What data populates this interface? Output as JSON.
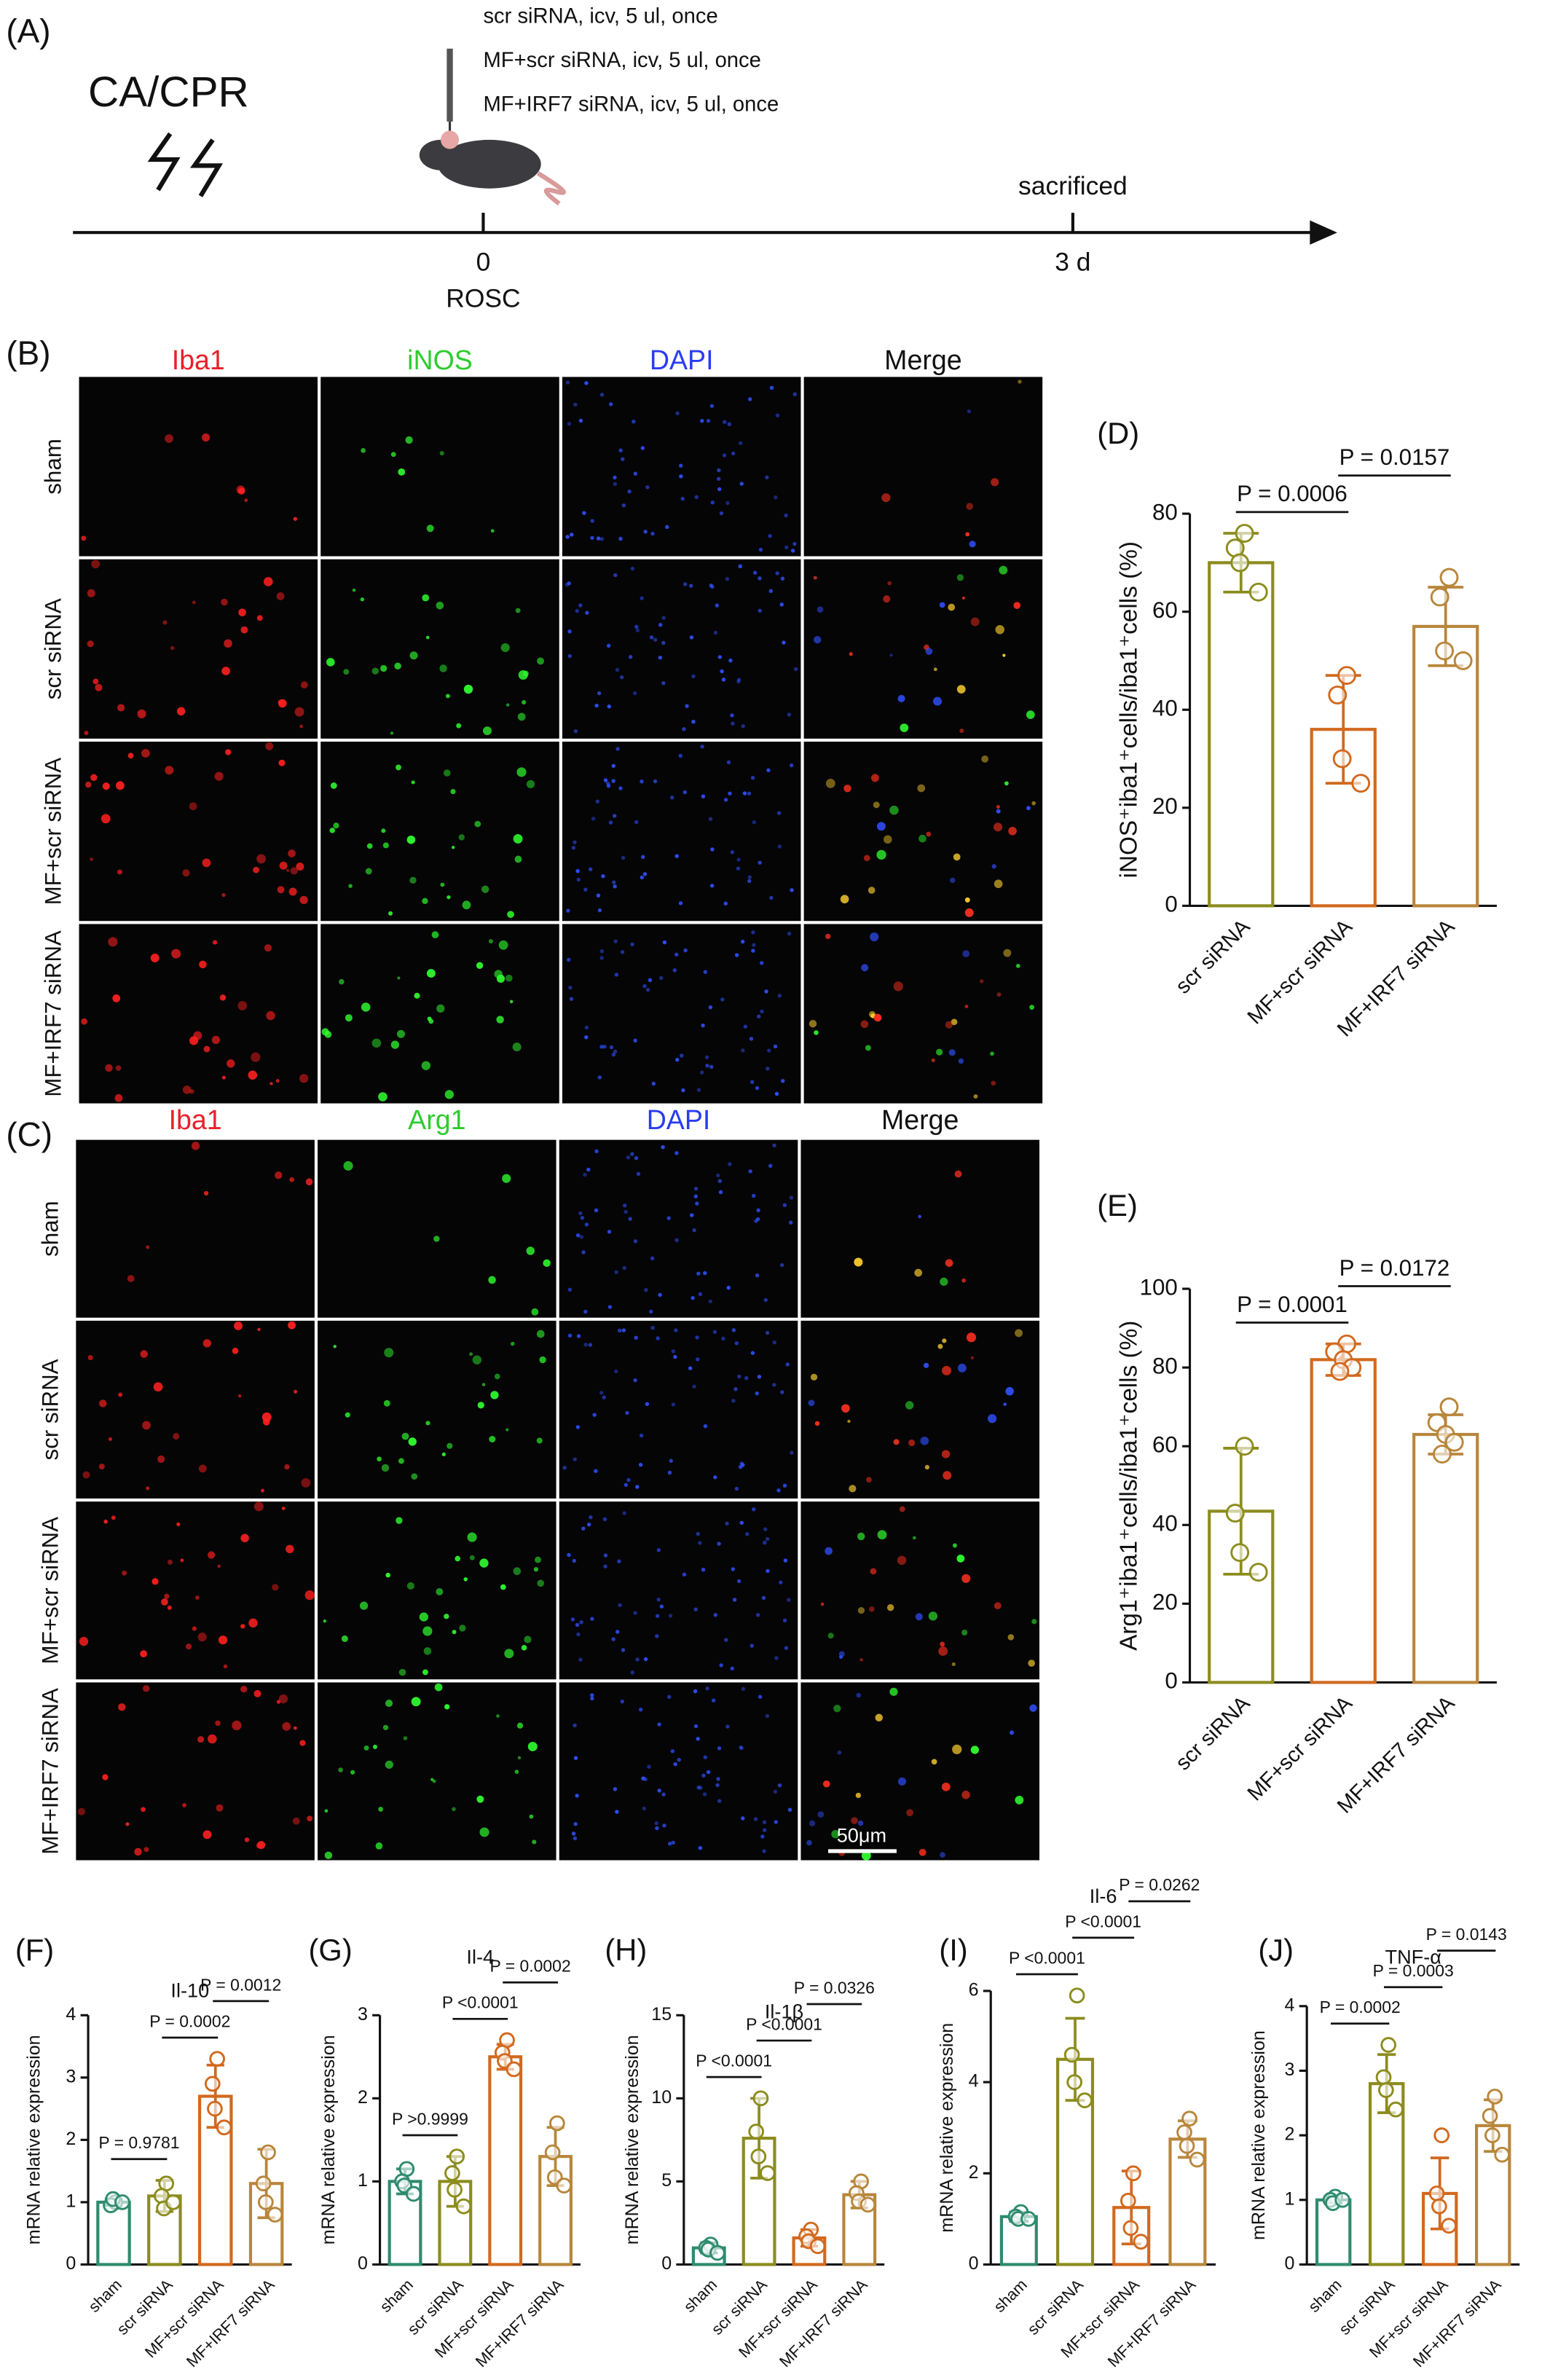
{
  "timeline": {
    "panel": "(A)",
    "event": "CA/CPR",
    "treatments": [
      "scr siRNA, icv, 5 ul, once",
      "MF+scr siRNA, icv, 5 ul, once",
      "MF+IRF7 siRNA, icv, 5 ul, once"
    ],
    "end_event": "sacrificed",
    "start_tick": "0",
    "start_label": "ROSC",
    "end_tick": "3 d"
  },
  "microscopy": [
    {
      "panel": "(B)",
      "columns": [
        "Iba1",
        "iNOS",
        "DAPI",
        "Merge"
      ],
      "column_colors": [
        "#e8202a",
        "#2ecc2e",
        "#2a3cf0",
        "#111111"
      ],
      "rows": [
        "sham",
        "scr siRNA",
        "MF+scr siRNA",
        "MF+IRF7 siRNA"
      ]
    },
    {
      "panel": "(C)",
      "columns": [
        "Iba1",
        "Arg1",
        "DAPI",
        "Merge"
      ],
      "column_colors": [
        "#e8202a",
        "#2ecc2e",
        "#2a3cf0",
        "#111111"
      ],
      "rows": [
        "sham",
        "scr siRNA",
        "MF+scr siRNA",
        "MF+IRF7 siRNA"
      ],
      "scale_bar": "50μm"
    }
  ],
  "chart_data": [
    {
      "type": "bar",
      "panel": "(D)",
      "y_label": "iNOS⁺iba1⁺cells/iba1⁺cells (%)",
      "categories": [
        "scr siRNA",
        "MF+scr siRNA",
        "MF+IRF7 siRNA"
      ],
      "colors": [
        "#8c8c1e",
        "#d2691e",
        "#b8863b"
      ],
      "values": [
        70,
        36,
        57
      ],
      "errors": [
        6,
        11,
        8
      ],
      "points": [
        [
          76,
          73,
          70,
          64
        ],
        [
          47,
          43,
          30,
          25
        ],
        [
          67,
          63,
          52,
          50
        ]
      ],
      "ylim": [
        0,
        80
      ],
      "yticks": [
        0,
        20,
        40,
        60,
        80
      ],
      "annotations": [
        {
          "text": "P = 0.0006",
          "from": 0,
          "to": 1
        },
        {
          "text": "P = 0.0157",
          "from": 1,
          "to": 2
        }
      ]
    },
    {
      "type": "bar",
      "panel": "(E)",
      "y_label": "Arg1⁺iba1⁺cells/iba1⁺cells (%)",
      "categories": [
        "scr siRNA",
        "MF+scr siRNA",
        "MF+IRF7 siRNA"
      ],
      "colors": [
        "#8c8c1e",
        "#d2691e",
        "#b8863b"
      ],
      "values": [
        43.5,
        82,
        63
      ],
      "errors": [
        16,
        4,
        5
      ],
      "points": [
        [
          60,
          43,
          33,
          28
        ],
        [
          86,
          84,
          82,
          80,
          79
        ],
        [
          70,
          66,
          63,
          61,
          58
        ]
      ],
      "ylim": [
        0,
        100
      ],
      "yticks": [
        0,
        20,
        40,
        60,
        80,
        100
      ],
      "annotations": [
        {
          "text": "P = 0.0001",
          "from": 0,
          "to": 1
        },
        {
          "text": "P = 0.0172",
          "from": 1,
          "to": 2
        }
      ]
    },
    {
      "type": "bar",
      "panel": "(F)",
      "title": "Il-10",
      "y_label": "mRNA relative expression",
      "categories": [
        "sham",
        "scr siRNA",
        "MF+scr siRNA",
        "MF+IRF7 siRNA"
      ],
      "colors": [
        "#2e8b6e",
        "#8c8c1e",
        "#d2691e",
        "#b8863b"
      ],
      "values": [
        1.0,
        1.1,
        2.7,
        1.3
      ],
      "errors": [
        0.05,
        0.25,
        0.5,
        0.55
      ],
      "points": [
        [
          1.0,
          0.95,
          1.05,
          1.0
        ],
        [
          1.3,
          1.1,
          0.9,
          1.0
        ],
        [
          3.3,
          2.9,
          2.5,
          2.2
        ],
        [
          1.8,
          1.3,
          1.0,
          0.8
        ]
      ],
      "ylim": [
        0,
        4
      ],
      "yticks": [
        0,
        1,
        2,
        3,
        4
      ],
      "annotations": [
        {
          "text": "P = 0.9781",
          "from": 0,
          "to": 1
        },
        {
          "text": "P = 0.0002",
          "from": 1,
          "to": 2
        },
        {
          "text": "P = 0.0012",
          "from": 2,
          "to": 3
        }
      ]
    },
    {
      "type": "bar",
      "panel": "(G)",
      "title": "Il-4",
      "y_label": "mRNA relative expression",
      "categories": [
        "sham",
        "scr siRNA",
        "MF+scr siRNA",
        "MF+IRF7 siRNA"
      ],
      "colors": [
        "#2e8b6e",
        "#8c8c1e",
        "#d2691e",
        "#b8863b"
      ],
      "values": [
        1.0,
        1.0,
        2.5,
        1.3
      ],
      "errors": [
        0.15,
        0.3,
        0.15,
        0.35
      ],
      "points": [
        [
          1.15,
          1.0,
          0.95,
          0.85
        ],
        [
          1.3,
          1.1,
          0.9,
          0.7
        ],
        [
          2.7,
          2.55,
          2.45,
          2.35
        ],
        [
          1.7,
          1.35,
          1.05,
          0.95
        ]
      ],
      "ylim": [
        0,
        3
      ],
      "yticks": [
        0,
        1,
        2,
        3
      ],
      "annotations": [
        {
          "text": "P >0.9999",
          "from": 0,
          "to": 1
        },
        {
          "text": "P <0.0001",
          "from": 1,
          "to": 2
        },
        {
          "text": "P = 0.0002",
          "from": 2,
          "to": 3
        }
      ]
    },
    {
      "type": "bar",
      "panel": "(H)",
      "title": "Il-1β",
      "y_label": "mRNA relative expression",
      "categories": [
        "sham",
        "scr siRNA",
        "MF+scr siRNA",
        "MF+IRF7 siRNA"
      ],
      "colors": [
        "#2e8b6e",
        "#8c8c1e",
        "#d2691e",
        "#b8863b"
      ],
      "values": [
        1.0,
        7.6,
        1.6,
        4.2
      ],
      "errors": [
        0.3,
        2.4,
        0.5,
        0.8
      ],
      "points": [
        [
          1.2,
          1.0,
          0.9,
          0.7
        ],
        [
          10,
          8,
          6.5,
          5.5
        ],
        [
          2.1,
          1.7,
          1.4,
          1.1
        ],
        [
          5.0,
          4.3,
          3.8,
          3.6
        ]
      ],
      "ylim": [
        0,
        15
      ],
      "yticks": [
        0,
        5,
        10,
        15
      ],
      "annotations": [
        {
          "text": "P <0.0001",
          "from": 0,
          "to": 1
        },
        {
          "text": "P <0.0001",
          "from": 1,
          "to": 2
        },
        {
          "text": "P = 0.0326",
          "from": 2,
          "to": 3
        }
      ]
    },
    {
      "type": "bar",
      "panel": "(I)",
      "title": "Il-6",
      "y_label": "mRNA relative expression",
      "categories": [
        "sham",
        "scr siRNA",
        "MF+scr siRNA",
        "MF+IRF7 siRNA"
      ],
      "colors": [
        "#2e8b6e",
        "#8c8c1e",
        "#d2691e",
        "#b8863b"
      ],
      "values": [
        1.05,
        4.5,
        1.25,
        2.75
      ],
      "errors": [
        0.1,
        0.9,
        0.8,
        0.4
      ],
      "points": [
        [
          1.15,
          1.05,
          1.0,
          1.0
        ],
        [
          5.9,
          4.6,
          4.0,
          3.6
        ],
        [
          2.0,
          1.4,
          0.8,
          0.5
        ],
        [
          3.2,
          2.9,
          2.6,
          2.3
        ]
      ],
      "ylim": [
        0,
        6
      ],
      "yticks": [
        0,
        2,
        4,
        6
      ],
      "annotations": [
        {
          "text": "P <0.0001",
          "from": 0,
          "to": 1
        },
        {
          "text": "P <0.0001",
          "from": 1,
          "to": 2
        },
        {
          "text": "P = 0.0262",
          "from": 2,
          "to": 3
        }
      ]
    },
    {
      "type": "bar",
      "panel": "(J)",
      "title": "TNF-α",
      "y_label": "mRNA relative expression",
      "categories": [
        "sham",
        "scr siRNA",
        "MF+scr siRNA",
        "MF+IRF7 siRNA"
      ],
      "colors": [
        "#2e8b6e",
        "#8c8c1e",
        "#d2691e",
        "#b8863b"
      ],
      "values": [
        1.0,
        2.8,
        1.1,
        2.15
      ],
      "errors": [
        0.05,
        0.45,
        0.55,
        0.4
      ],
      "points": [
        [
          1.05,
          1.0,
          0.95,
          1.0
        ],
        [
          3.4,
          2.9,
          2.7,
          2.4
        ],
        [
          2.0,
          1.1,
          0.9,
          0.6
        ],
        [
          2.6,
          2.3,
          2.0,
          1.7
        ]
      ],
      "ylim": [
        0,
        4
      ],
      "yticks": [
        0,
        1,
        2,
        3,
        4
      ],
      "annotations": [
        {
          "text": "P = 0.0002",
          "from": 0,
          "to": 1
        },
        {
          "text": "P = 0.0003",
          "from": 1,
          "to": 2
        },
        {
          "text": "P = 0.0143",
          "from": 2,
          "to": 3
        }
      ]
    }
  ]
}
